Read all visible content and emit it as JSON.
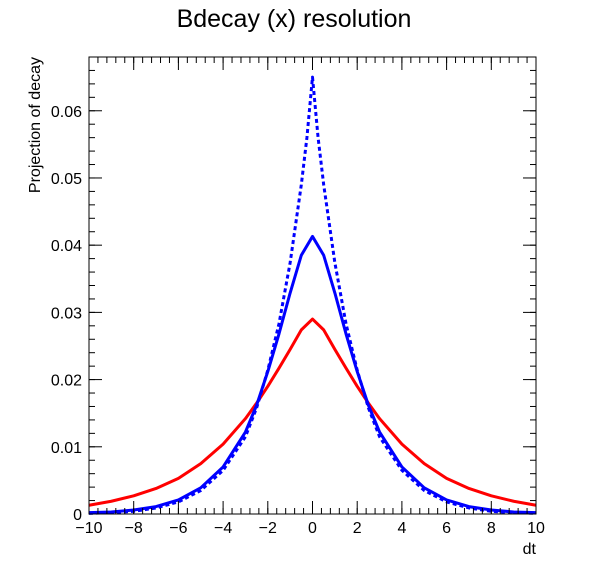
{
  "chart_data": {
    "type": "line",
    "title": "Bdecay (x) resolution",
    "xlabel": "dt",
    "ylabel": "Projection of decay",
    "xlim": [
      -10,
      10
    ],
    "ylim": [
      0,
      0.068
    ],
    "x_ticks": [
      -10,
      -8,
      -6,
      -4,
      -2,
      0,
      2,
      4,
      6,
      8,
      10
    ],
    "x_tick_labels": [
      "−10",
      "−8",
      "−6",
      "−4",
      "−2",
      "0",
      "2",
      "4",
      "6",
      "8",
      "10"
    ],
    "y_ticks": [
      0,
      0.01,
      0.02,
      0.03,
      0.04,
      0.05,
      0.06
    ],
    "y_tick_labels": [
      "0",
      "0.01",
      "0.02",
      "0.03",
      "0.04",
      "0.05",
      "0.06"
    ],
    "grid": false,
    "legend": "none",
    "series": [
      {
        "color": "#ff0000",
        "style": "solid",
        "x": [
          -10,
          -9,
          -8,
          -7,
          -6,
          -5,
          -4,
          -3,
          -2.5,
          -2,
          -1.5,
          -1,
          -0.5,
          0,
          0.5,
          1,
          1.5,
          2,
          2.5,
          3,
          4,
          5,
          6,
          7,
          8,
          9,
          10
        ],
        "values": [
          0.0013,
          0.0019,
          0.0027,
          0.0038,
          0.0053,
          0.0075,
          0.0104,
          0.0142,
          0.0165,
          0.019,
          0.0217,
          0.0245,
          0.0274,
          0.029,
          0.0274,
          0.0245,
          0.0217,
          0.019,
          0.0165,
          0.0142,
          0.0104,
          0.0075,
          0.0053,
          0.0038,
          0.0027,
          0.0019,
          0.0013
        ]
      },
      {
        "color": "#0000ff",
        "style": "solid",
        "x": [
          -10,
          -9,
          -8,
          -7,
          -6,
          -5,
          -4,
          -3,
          -2.5,
          -2,
          -1.5,
          -1,
          -0.5,
          0,
          0.5,
          1,
          1.5,
          2,
          2.5,
          3,
          4,
          5,
          6,
          7,
          8,
          9,
          10
        ],
        "values": [
          0.0002,
          0.0003,
          0.0006,
          0.0011,
          0.0021,
          0.0039,
          0.007,
          0.0122,
          0.0162,
          0.0212,
          0.0268,
          0.0329,
          0.0385,
          0.0413,
          0.0385,
          0.0329,
          0.0268,
          0.0212,
          0.0162,
          0.0122,
          0.007,
          0.0039,
          0.0021,
          0.0011,
          0.0006,
          0.0003,
          0.0002
        ]
      },
      {
        "color": "#0000ff",
        "style": "dashed",
        "x": [
          -10,
          -9,
          -8,
          -7,
          -6,
          -5,
          -4,
          -3,
          -2.5,
          -2,
          -1.5,
          -1,
          -0.5,
          -0.25,
          0,
          0.25,
          0.5,
          1,
          1.5,
          2,
          2.5,
          3,
          4,
          5,
          6,
          7,
          8,
          9,
          10
        ],
        "values": [
          0.0001,
          0.0002,
          0.0004,
          0.0009,
          0.0018,
          0.0035,
          0.0065,
          0.0115,
          0.0158,
          0.0214,
          0.0283,
          0.0374,
          0.049,
          0.056,
          0.065,
          0.056,
          0.049,
          0.0374,
          0.0283,
          0.0214,
          0.0158,
          0.0115,
          0.0065,
          0.0035,
          0.0018,
          0.0009,
          0.0004,
          0.0002,
          0.0001
        ]
      }
    ]
  }
}
